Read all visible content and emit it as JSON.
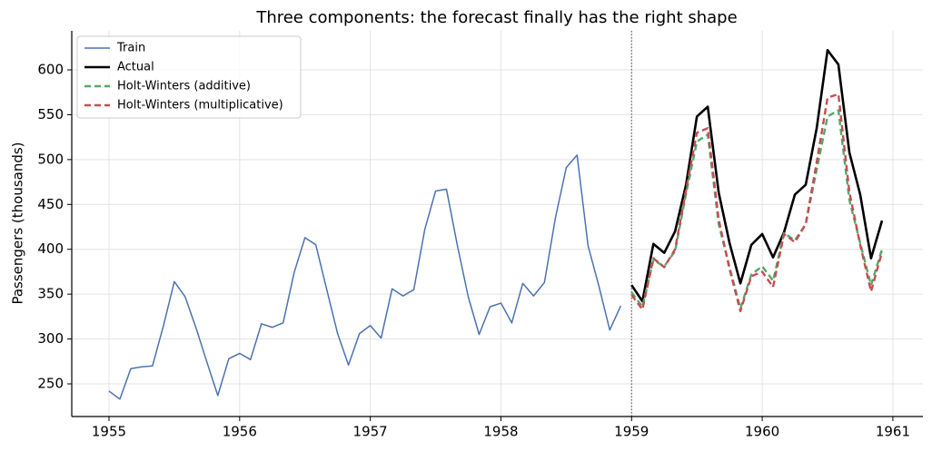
{
  "chart_data": {
    "type": "line",
    "title": "Three components: the forecast finally has the right shape",
    "y_label": "Passengers (thousands)",
    "xlim": [
      1954.715,
      1961.23
    ],
    "ylim": [
      213.6,
      643.5
    ],
    "xticks": [
      1955,
      1956,
      1957,
      1958,
      1959,
      1960,
      1961
    ],
    "yticks": [
      250,
      300,
      350,
      400,
      450,
      500,
      550,
      600
    ],
    "grid": true,
    "legend": "upper left",
    "vline": 1959,
    "series": [
      {
        "name": "Train",
        "color": "#4c72b0",
        "dash": false,
        "width": 1.5,
        "x": [
          1955,
          1955.083,
          1955.167,
          1955.25,
          1955.333,
          1955.417,
          1955.5,
          1955.583,
          1955.667,
          1955.75,
          1955.833,
          1955.917,
          1956,
          1956.083,
          1956.167,
          1956.25,
          1956.333,
          1956.417,
          1956.5,
          1956.583,
          1956.667,
          1956.75,
          1956.833,
          1956.917,
          1957,
          1957.083,
          1957.167,
          1957.25,
          1957.333,
          1957.417,
          1957.5,
          1957.583,
          1957.667,
          1957.75,
          1957.833,
          1957.917,
          1958,
          1958.083,
          1958.167,
          1958.25,
          1958.333,
          1958.417,
          1958.5,
          1958.583,
          1958.667,
          1958.75,
          1958.833,
          1958.917
        ],
        "values": [
          242,
          233,
          267,
          269,
          270,
          315,
          364,
          347,
          312,
          274,
          237,
          278,
          284,
          277,
          317,
          313,
          318,
          374,
          413,
          405,
          355,
          306,
          271,
          306,
          315,
          301,
          356,
          348,
          355,
          422,
          465,
          467,
          404,
          347,
          305,
          336,
          340,
          318,
          362,
          348,
          363,
          435,
          491,
          505,
          404,
          359,
          310,
          337
        ]
      },
      {
        "name": "Actual",
        "color": "#000000",
        "dash": false,
        "width": 2.6,
        "x": [
          1959,
          1959.083,
          1959.167,
          1959.25,
          1959.333,
          1959.417,
          1959.5,
          1959.583,
          1959.667,
          1959.75,
          1959.833,
          1959.917,
          1960,
          1960.083,
          1960.167,
          1960.25,
          1960.333,
          1960.417,
          1960.5,
          1960.583,
          1960.667,
          1960.75,
          1960.833,
          1960.917
        ],
        "values": [
          360,
          342,
          406,
          396,
          420,
          472,
          548,
          559,
          463,
          407,
          362,
          405,
          417,
          391,
          419,
          461,
          472,
          535,
          622,
          606,
          508,
          461,
          390,
          432
        ]
      },
      {
        "name": "Holt-Winters (additive)",
        "color": "#55a868",
        "dash": true,
        "width": 2.4,
        "x": [
          1959,
          1959.083,
          1959.167,
          1959.25,
          1959.333,
          1959.417,
          1959.5,
          1959.583,
          1959.667,
          1959.75,
          1959.833,
          1959.917,
          1960,
          1960.083,
          1960.167,
          1960.25,
          1960.333,
          1960.417,
          1960.5,
          1960.583,
          1960.667,
          1960.75,
          1960.833,
          1960.917
        ],
        "values": [
          352,
          336,
          388,
          381,
          398,
          462,
          520,
          528,
          428,
          380,
          334,
          372,
          381,
          365,
          418,
          410,
          428,
          489,
          548,
          555,
          455,
          407,
          360,
          400
        ]
      },
      {
        "name": "Holt-Winters (multiplicative)",
        "color": "#c44e52",
        "dash": true,
        "width": 2.4,
        "x": [
          1959,
          1959.083,
          1959.167,
          1959.25,
          1959.333,
          1959.417,
          1959.5,
          1959.583,
          1959.667,
          1959.75,
          1959.833,
          1959.917,
          1960,
          1960.083,
          1960.167,
          1960.25,
          1960.333,
          1960.417,
          1960.5,
          1960.583,
          1960.667,
          1960.75,
          1960.833,
          1960.917
        ],
        "values": [
          349,
          333,
          390,
          380,
          400,
          466,
          530,
          535,
          433,
          378,
          331,
          370,
          375,
          358,
          417,
          408,
          428,
          497,
          569,
          573,
          464,
          405,
          353,
          397
        ]
      }
    ]
  }
}
